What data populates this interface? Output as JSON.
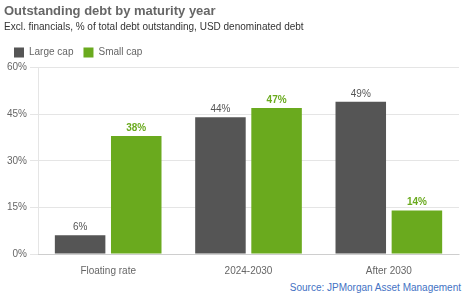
{
  "chart_data": {
    "type": "bar",
    "title": "Outstanding debt by maturity year",
    "subtitle": "Excl. financials, % of total debt outstanding, USD denominated debt",
    "source": "Source: JPMorgan Asset Management",
    "categories": [
      "Floating rate",
      "2024-2030",
      "After 2030"
    ],
    "series": [
      {
        "name": "Large cap",
        "color": "#555555",
        "values": [
          6,
          44,
          49
        ],
        "value_labels": [
          "6%",
          "44%",
          "49%"
        ]
      },
      {
        "name": "Small cap",
        "color": "#6aaa1e",
        "values": [
          38,
          47,
          14
        ],
        "value_labels": [
          "38%",
          "47%",
          "14%"
        ]
      }
    ],
    "ylim": [
      0,
      60
    ],
    "yticks": [
      {
        "value": 0,
        "label": "0%"
      },
      {
        "value": 15,
        "label": "15%"
      },
      {
        "value": 30,
        "label": "30%"
      },
      {
        "value": 45,
        "label": "45%"
      },
      {
        "value": 60,
        "label": "60%"
      }
    ],
    "grid": true,
    "legend": "upper left",
    "data_labels": true
  }
}
